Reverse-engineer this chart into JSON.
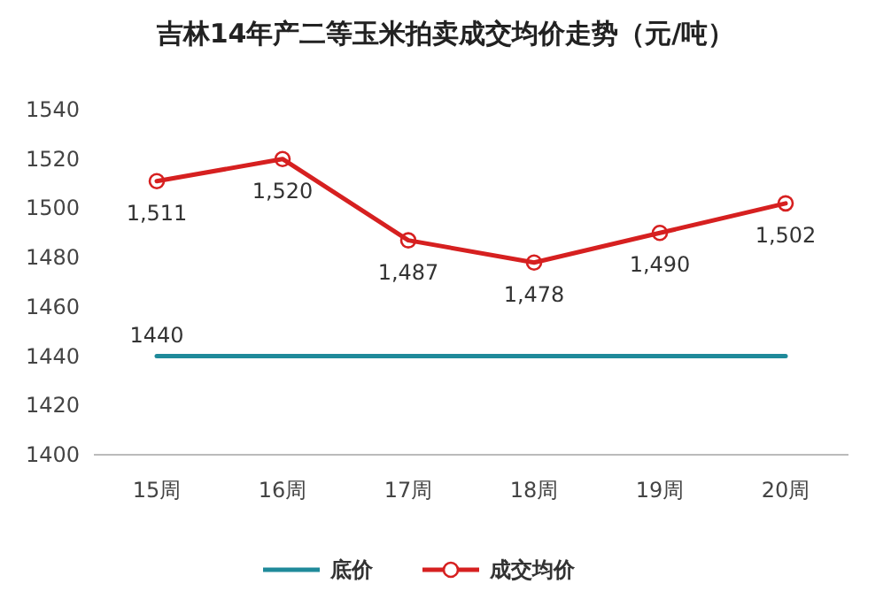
{
  "chart_data": {
    "type": "line",
    "title": "吉林14年产二等玉米拍卖成交均价走势（元/吨）",
    "categories": [
      "15周",
      "16周",
      "17周",
      "18周",
      "19周",
      "20周"
    ],
    "series": [
      {
        "name": "底价",
        "color": "#1f8a9a",
        "values": [
          1440,
          1440,
          1440,
          1440,
          1440,
          1440
        ],
        "value_labels": [
          "1440",
          null,
          null,
          null,
          null,
          null
        ],
        "marker": "none"
      },
      {
        "name": "成交均价",
        "color": "#d62020",
        "values": [
          1511,
          1520,
          1487,
          1478,
          1490,
          1502
        ],
        "value_labels": [
          "1,511",
          "1,520",
          "1,487",
          "1,478",
          "1,490",
          "1,502"
        ],
        "marker": "circle"
      }
    ],
    "ylim": [
      1400,
      1540
    ],
    "yticks": [
      1400,
      1420,
      1440,
      1460,
      1480,
      1500,
      1520,
      1540
    ],
    "grid": false,
    "legend": "bottom",
    "line_style": "solid"
  }
}
